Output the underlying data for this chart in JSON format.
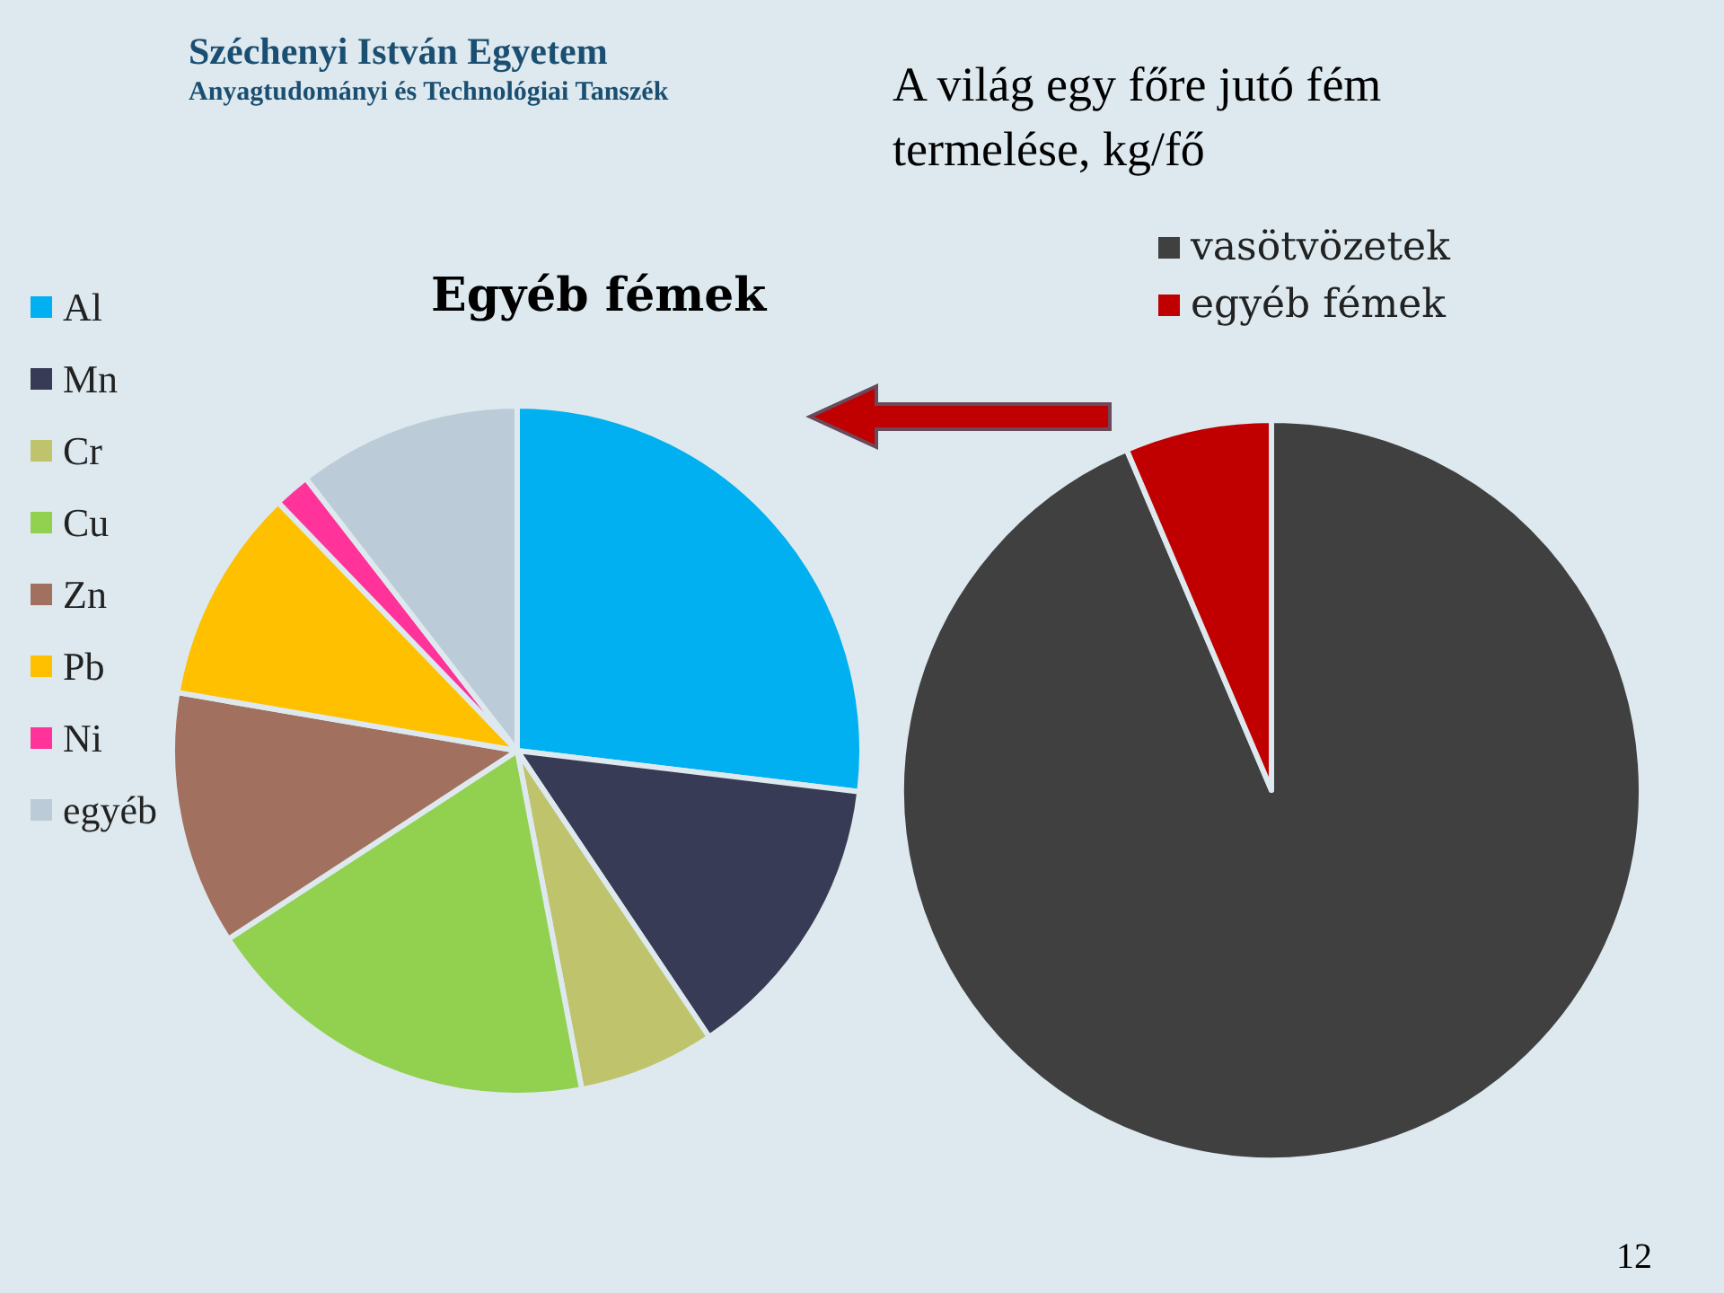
{
  "chart_data": [
    {
      "type": "pie",
      "title": "Egyéb fémek",
      "categories": [
        "Al",
        "Mn",
        "Cr",
        "Cu",
        "Zn",
        "Pb",
        "Ni",
        "egyéb"
      ],
      "values": [
        26.9,
        13.7,
        6.4,
        18.8,
        11.9,
        10.1,
        1.7,
        10.5
      ],
      "colors": [
        "#00b0f0",
        "#383b55",
        "#bfc36b",
        "#92d050",
        "#a2705e",
        "#ffc000",
        "#ff3399",
        "#bccbd8"
      ],
      "legend": "left",
      "annotations": [
        "Széchenyi István Egyetem",
        "Anyagtudományi és Technológiai Tanszék"
      ]
    },
    {
      "type": "pie",
      "title": "A világ egy főre jutó fém termelése, kg/fő",
      "categories": [
        "vasötvözetek",
        "egyéb fémek"
      ],
      "values": [
        93.6,
        6.4
      ],
      "colors": [
        "#404040",
        "#c00000"
      ],
      "legend": "top",
      "annotations": [
        "12"
      ]
    }
  ]
}
